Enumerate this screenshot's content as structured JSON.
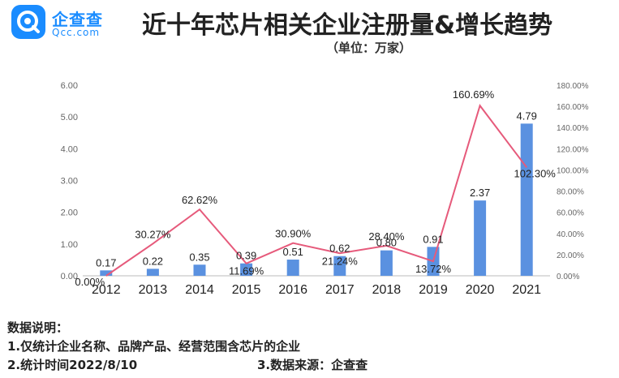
{
  "brand": {
    "name": "企查查",
    "domain": "Qcc.com"
  },
  "title": "近十年芯片相关企业注册量&增长趋势",
  "subtitle": "（单位：万家）",
  "chart_data": {
    "type": "bar+line",
    "categories": [
      "2012",
      "2013",
      "2014",
      "2015",
      "2016",
      "2017",
      "2018",
      "2019",
      "2020",
      "2021"
    ],
    "series": [
      {
        "values": [
          0.17,
          0.22,
          0.35,
          0.39,
          0.51,
          0.62,
          0.8,
          0.91,
          2.37,
          4.79
        ],
        "labels": [
          "0.17",
          "0.22",
          "0.35",
          "0.39",
          "0.51",
          "0.62",
          "0.80",
          "0.91",
          "2.37",
          "4.79"
        ],
        "axis": "left",
        "color": "#5a91e0"
      },
      {
        "values": [
          0.0,
          30.27,
          62.62,
          11.69,
          30.9,
          21.24,
          28.4,
          13.72,
          160.69,
          102.3
        ],
        "labels": [
          "0.00%",
          "30.27%",
          "62.62%",
          "11.69%",
          "30.90%",
          "21.24%",
          "28.40%",
          "13.72%",
          "160.69%",
          "102.30%"
        ],
        "axis": "right",
        "color": "#e65a7b"
      }
    ],
    "y_left": {
      "range": [
        0,
        6
      ],
      "ticks": [
        "0.00",
        "1.00",
        "2.00",
        "3.00",
        "4.00",
        "5.00",
        "6.00"
      ]
    },
    "y_right": {
      "range": [
        0,
        180
      ],
      "ticks": [
        "0.00%",
        "20.00%",
        "40.00%",
        "60.00%",
        "80.00%",
        "100.00%",
        "120.00%",
        "140.00%",
        "160.00%",
        "180.00%"
      ]
    },
    "grid": false,
    "legend": "none"
  },
  "notes": {
    "heading": "数据说明：",
    "line1": "1.仅统计企业名称、品牌产品、经营范围含芯片的企业",
    "line2a": "2.统计时间2022/8/10",
    "line2b": "3.数据来源：企查查"
  }
}
